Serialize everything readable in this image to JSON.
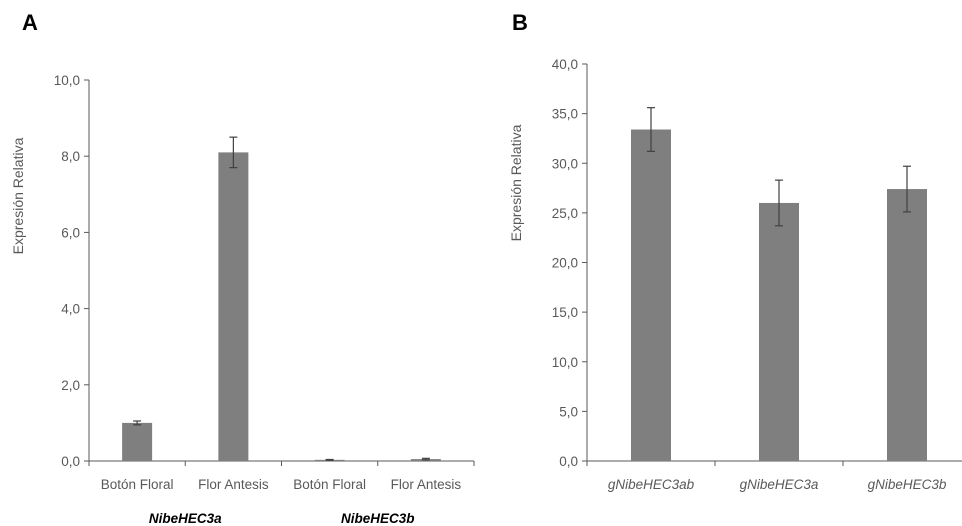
{
  "panels": {
    "a": {
      "label": "A"
    },
    "b": {
      "label": "B"
    }
  },
  "colors": {
    "bar": "#7f7f7f",
    "axis": "#595959",
    "errorbar": "#404040",
    "group_text": "#000000"
  },
  "chart_data": [
    {
      "type": "bar",
      "panel": "A",
      "title": "",
      "xlabel": "",
      "ylabel": "Expresión Relativa",
      "ylim": [
        0,
        10
      ],
      "yticks": [
        "0,0",
        "2,0",
        "4,0",
        "6,0",
        "8,0",
        "10,0"
      ],
      "categories": [
        "Botón Floral",
        "Flor Antesis",
        "Botón Floral",
        "Flor Antesis"
      ],
      "groups": [
        {
          "name": "NibeHEC3a",
          "categories": [
            "Botón Floral",
            "Flor Antesis"
          ]
        },
        {
          "name": "NibeHEC3b",
          "categories": [
            "Botón Floral",
            "Flor Antesis"
          ]
        }
      ],
      "values": [
        1.0,
        8.1,
        0.03,
        0.05
      ],
      "errors": [
        0.05,
        0.4,
        0.01,
        0.02
      ],
      "grid": false,
      "legend": "none"
    },
    {
      "type": "bar",
      "panel": "B",
      "title": "",
      "xlabel": "",
      "ylabel": "Expresión Relativa",
      "ylim": [
        0,
        40
      ],
      "yticks": [
        "0,0",
        "5,0",
        "10,0",
        "15,0",
        "20,0",
        "25,0",
        "30,0",
        "35,0",
        "40,0"
      ],
      "categories": [
        "gNibeHEC3ab",
        "gNibeHEC3a",
        "gNibeHEC3b"
      ],
      "values": [
        33.4,
        26.0,
        27.4
      ],
      "errors": [
        2.2,
        2.3,
        2.3
      ],
      "grid": false,
      "legend": "none"
    }
  ]
}
